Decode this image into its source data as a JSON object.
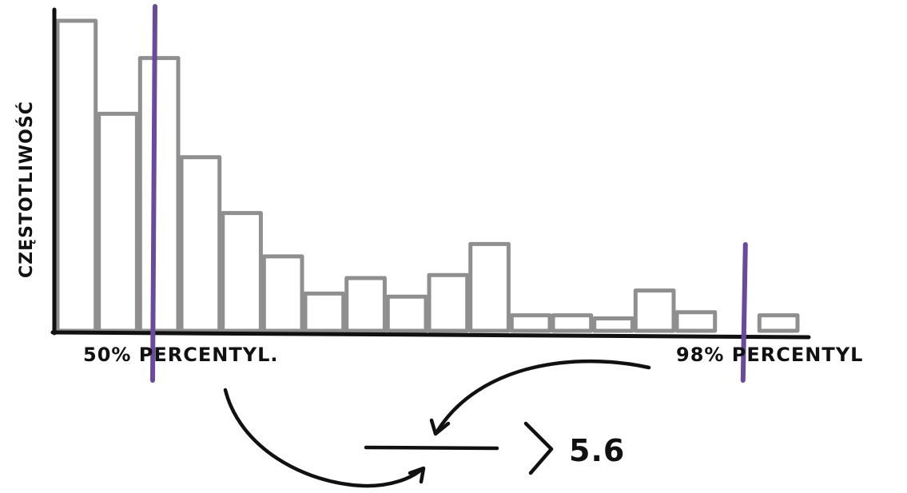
{
  "chart_data": {
    "type": "bar",
    "ylabel": "CZĘSTOTLIWOŚĆ",
    "values": [
      100,
      70,
      88,
      56,
      38,
      24,
      12,
      17,
      11,
      18,
      28,
      5,
      5,
      4,
      13,
      6,
      0,
      5
    ],
    "percentile_markers": [
      {
        "label": "50% PERCENTYL.",
        "bin_position": 2.4
      },
      {
        "label": "98% PERCENTYL",
        "bin_position": 16.7
      }
    ],
    "ratio_result": "5.6",
    "grid": false,
    "legend": "none"
  },
  "colors": {
    "bar_stroke": "#8f8f8f",
    "marker": "#6a4a9c",
    "ink": "#111111"
  }
}
